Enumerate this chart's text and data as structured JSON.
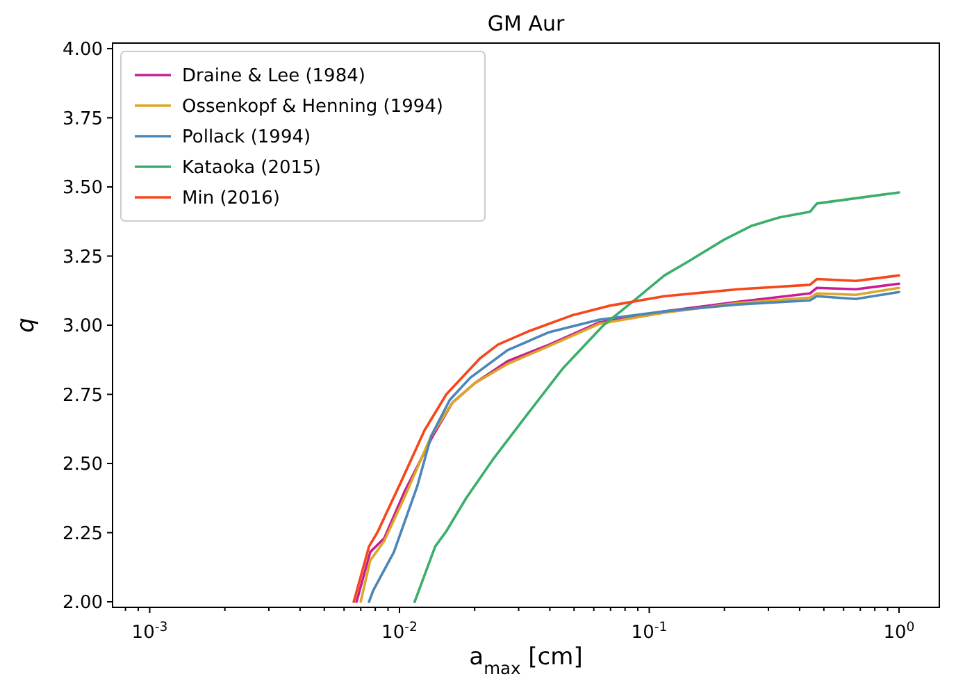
{
  "chart_data": {
    "type": "line",
    "title": "GM Aur",
    "xlabel": "a$_{max}$ [cm]",
    "ylabel": "q",
    "log": "x",
    "grid": false,
    "legend": "top left",
    "marker": "none",
    "line_style": "solid",
    "xlim": [
      0.00071,
      1.45
    ],
    "ylim": [
      1.98,
      4.02
    ],
    "xticks": [
      {
        "value": 0.0008,
        "label": null
      },
      {
        "value": 0.0009,
        "label": null
      },
      {
        "value": 0.001,
        "label": "10$^{-3}$"
      },
      {
        "value": 0.002,
        "label": null
      },
      {
        "value": 0.003,
        "label": null
      },
      {
        "value": 0.004,
        "label": null
      },
      {
        "value": 0.005,
        "label": null
      },
      {
        "value": 0.006,
        "label": null
      },
      {
        "value": 0.007,
        "label": null
      },
      {
        "value": 0.008,
        "label": null
      },
      {
        "value": 0.009,
        "label": null
      },
      {
        "value": 0.01,
        "label": "10$^{-2}$"
      },
      {
        "value": 0.02,
        "label": null
      },
      {
        "value": 0.03,
        "label": null
      },
      {
        "value": 0.04,
        "label": null
      },
      {
        "value": 0.05,
        "label": null
      },
      {
        "value": 0.06,
        "label": null
      },
      {
        "value": 0.07,
        "label": null
      },
      {
        "value": 0.08,
        "label": null
      },
      {
        "value": 0.09,
        "label": null
      },
      {
        "value": 0.1,
        "label": "10$^{-1}$"
      },
      {
        "value": 0.2,
        "label": null
      },
      {
        "value": 0.3,
        "label": null
      },
      {
        "value": 0.4,
        "label": null
      },
      {
        "value": 0.5,
        "label": null
      },
      {
        "value": 0.6,
        "label": null
      },
      {
        "value": 0.7,
        "label": null
      },
      {
        "value": 0.8,
        "label": null
      },
      {
        "value": 0.9,
        "label": null
      },
      {
        "value": 1,
        "label": "10$^{0}$"
      }
    ],
    "yticks": [
      {
        "value": 2,
        "label": "2.00"
      },
      {
        "value": 2.25,
        "label": "2.25"
      },
      {
        "value": 2.5,
        "label": "2.50"
      },
      {
        "value": 2.75,
        "label": "2.75"
      },
      {
        "value": 3,
        "label": "3.00"
      },
      {
        "value": 3.25,
        "label": "3.25"
      },
      {
        "value": 3.5,
        "label": "3.50"
      },
      {
        "value": 3.75,
        "label": "3.75"
      },
      {
        "value": 4,
        "label": "4.00"
      }
    ],
    "series": [
      {
        "name": "Draine & Lee (1984)",
        "color": "#c71e96",
        "x": [
          0.00673,
          0.00764,
          0.00869,
          0.0105,
          0.0136,
          0.0163,
          0.02,
          0.0271,
          0.0398,
          0.0631,
          0.115,
          0.227,
          0.44,
          0.469,
          0.672,
          1
        ],
        "values": [
          2.0,
          2.18,
          2.23,
          2.4,
          2.6,
          2.72,
          2.79,
          2.87,
          2.93,
          3.01,
          3.05,
          3.085,
          3.115,
          3.135,
          3.13,
          3.15
        ]
      },
      {
        "name": "Ossenkopf & Henning (1994)",
        "color": "#dca626",
        "x": [
          0.00699,
          0.00764,
          0.00869,
          0.0105,
          0.0134,
          0.0163,
          0.02,
          0.0271,
          0.0398,
          0.0631,
          0.115,
          0.227,
          0.44,
          0.469,
          0.672,
          1
        ],
        "values": [
          2.0,
          2.15,
          2.22,
          2.38,
          2.6,
          2.72,
          2.79,
          2.86,
          2.925,
          3.005,
          3.045,
          3.08,
          3.1,
          3.115,
          3.11,
          3.135
        ]
      },
      {
        "name": "Pollack (1994)",
        "color": "#4a86b8",
        "x": [
          0.00755,
          0.00784,
          0.0095,
          0.0118,
          0.0134,
          0.0159,
          0.0192,
          0.0271,
          0.0398,
          0.0631,
          0.115,
          0.227,
          0.44,
          0.469,
          0.672,
          1
        ],
        "values": [
          2.0,
          2.04,
          2.18,
          2.42,
          2.6,
          2.73,
          2.81,
          2.91,
          2.975,
          3.02,
          3.05,
          3.075,
          3.09,
          3.105,
          3.095,
          3.12
        ]
      },
      {
        "name": "Kataoka (2015)",
        "color": "#3aae6a",
        "x": [
          0.0115,
          0.0139,
          0.0154,
          0.0185,
          0.0239,
          0.032,
          0.0452,
          0.0656,
          0.0858,
          0.115,
          0.143,
          0.2,
          0.258,
          0.333,
          0.44,
          0.469,
          1
        ],
        "values": [
          2.0,
          2.2,
          2.255,
          2.375,
          2.52,
          2.67,
          2.845,
          3.0,
          3.085,
          3.18,
          3.23,
          3.31,
          3.36,
          3.39,
          3.41,
          3.44,
          3.48
        ]
      },
      {
        "name": "Min (2016)",
        "color": "#f5471a",
        "x": [
          0.00656,
          0.00755,
          0.00815,
          0.0101,
          0.0126,
          0.0154,
          0.021,
          0.0248,
          0.0333,
          0.0488,
          0.0689,
          0.115,
          0.227,
          0.44,
          0.469,
          0.672,
          1
        ],
        "values": [
          2.0,
          2.2,
          2.25,
          2.43,
          2.62,
          2.75,
          2.88,
          2.93,
          2.98,
          3.035,
          3.07,
          3.105,
          3.13,
          3.146,
          3.167,
          3.16,
          3.18
        ]
      }
    ]
  }
}
